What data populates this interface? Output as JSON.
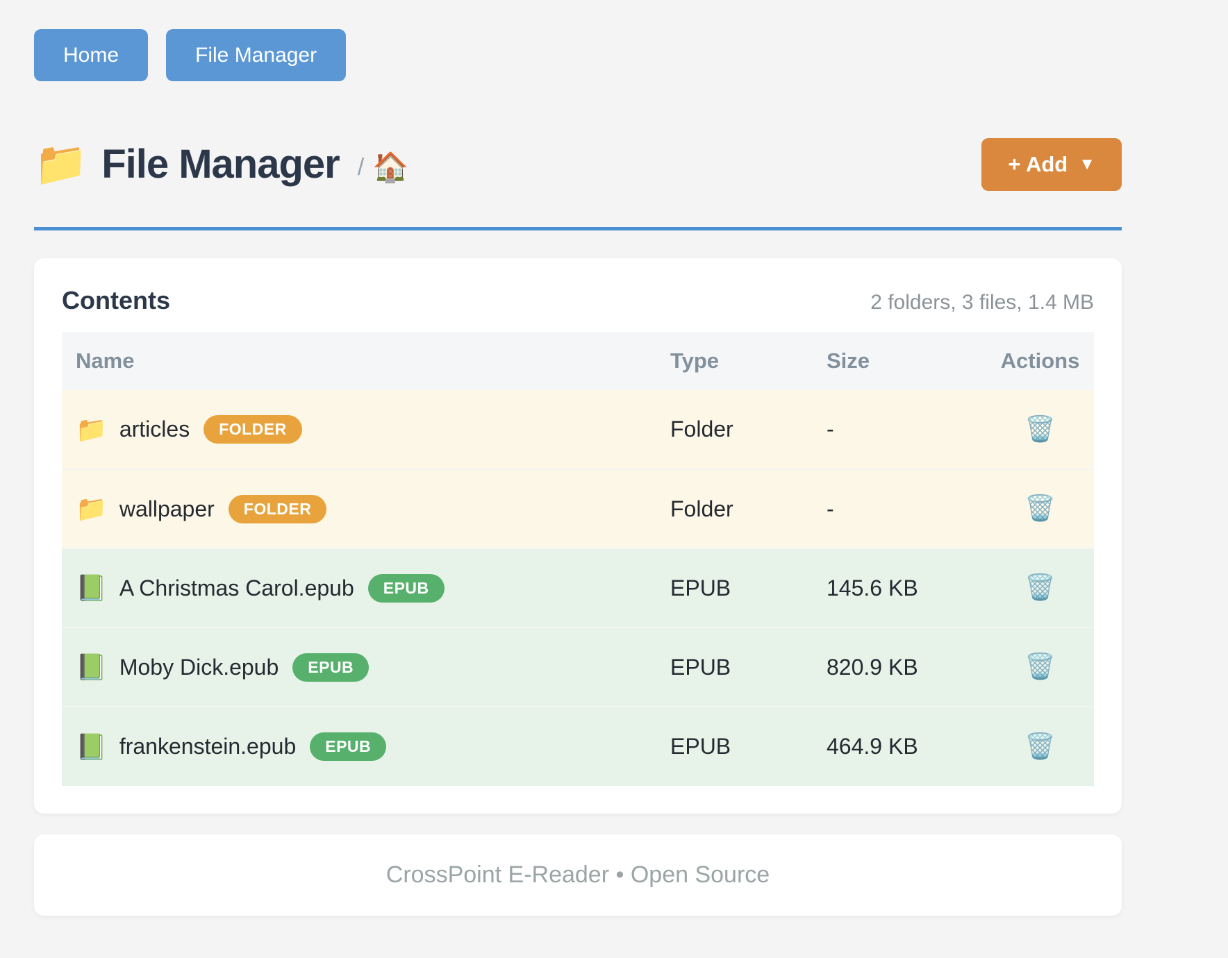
{
  "nav": {
    "home_label": "Home",
    "file_manager_label": "File Manager"
  },
  "header": {
    "title_icon": "📁",
    "title": "File Manager",
    "breadcrumb_separator": "/",
    "breadcrumb_home_icon": "🏠",
    "add_button": {
      "label": "+ Add",
      "caret": "▼"
    }
  },
  "contents": {
    "heading": "Contents",
    "summary": "2 folders, 3 files, 1.4 MB",
    "columns": {
      "name": "Name",
      "type": "Type",
      "size": "Size",
      "actions": "Actions"
    },
    "rows": [
      {
        "icon": "📁",
        "name": "articles",
        "badge": "FOLDER",
        "type": "Folder",
        "size": "-",
        "action_icon": "🗑️"
      },
      {
        "icon": "📁",
        "name": "wallpaper",
        "badge": "FOLDER",
        "type": "Folder",
        "size": "-",
        "action_icon": "🗑️"
      },
      {
        "icon": "📗",
        "name": "A Christmas Carol.epub",
        "badge": "EPUB",
        "type": "EPUB",
        "size": "145.6 KB",
        "action_icon": "🗑️"
      },
      {
        "icon": "📗",
        "name": "Moby Dick.epub",
        "badge": "EPUB",
        "type": "EPUB",
        "size": "820.9 KB",
        "action_icon": "🗑️"
      },
      {
        "icon": "📗",
        "name": "frankenstein.epub",
        "badge": "EPUB",
        "type": "EPUB",
        "size": "464.9 KB",
        "action_icon": "🗑️"
      }
    ]
  },
  "footer": {
    "text": "CrossPoint E-Reader • Open Source"
  },
  "colors": {
    "accent_blue": "#5b97d4",
    "accent_orange": "#d9883e",
    "divider_blue": "#4a90d2",
    "badge_folder": "#e8a33d",
    "badge_epub": "#57b06c",
    "row_folder_bg": "#fdf7e7",
    "row_file_bg": "#e7f2e9",
    "thead_bg": "#f5f6f8",
    "thead_text": "#82909c",
    "title_text": "#2c3849",
    "row_text": "#242a30",
    "muted_text": "#8b9298",
    "footer_text": "#9ba4a6"
  }
}
